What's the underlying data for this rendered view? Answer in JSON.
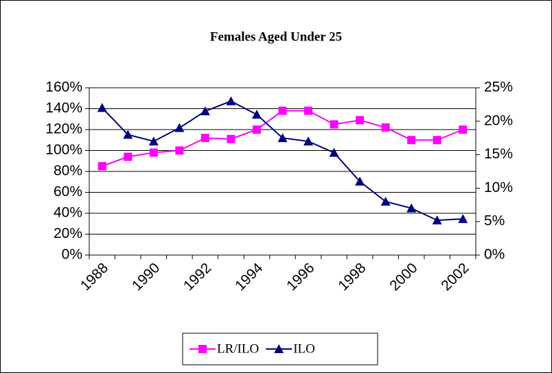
{
  "chart_data": {
    "type": "line",
    "title": "Females Aged Under 25",
    "categories": [
      "1988",
      null,
      "1990",
      null,
      "1992",
      null,
      "1994",
      null,
      "1996",
      null,
      "1998",
      null,
      "2000",
      null,
      "2002"
    ],
    "series": [
      {
        "name": "LR/ILO",
        "color": "#ff00ff",
        "marker": "square",
        "values": [
          85,
          94,
          98,
          100,
          112,
          111,
          120,
          138,
          138,
          125,
          129,
          122,
          110,
          110,
          120
        ]
      },
      {
        "name": "ILO",
        "color": "#000080",
        "marker": "triangle",
        "axis": "y2",
        "values": [
          22,
          18,
          17,
          19,
          21.5,
          23,
          21,
          17.5,
          17,
          15.3,
          11,
          8,
          7,
          5.2,
          5.4
        ]
      }
    ],
    "ylim": [
      0,
      160
    ],
    "yticks": [
      {
        "value": 0,
        "label": "0%"
      },
      {
        "value": 20,
        "label": "20%"
      },
      {
        "value": 40,
        "label": "40%"
      },
      {
        "value": 60,
        "label": "60%"
      },
      {
        "value": 80,
        "label": "80%"
      },
      {
        "value": 100,
        "label": "100%"
      },
      {
        "value": 120,
        "label": "120%"
      },
      {
        "value": 140,
        "label": "140%"
      },
      {
        "value": 160,
        "label": "160%"
      }
    ],
    "y2lim": [
      0,
      25
    ],
    "y2ticks": [
      {
        "value": 0,
        "label": "0%"
      },
      {
        "value": 5,
        "label": "5%"
      },
      {
        "value": 10,
        "label": "10%"
      },
      {
        "value": 15,
        "label": "15%"
      },
      {
        "value": 20,
        "label": "20%"
      },
      {
        "value": 25,
        "label": "25%"
      }
    ],
    "grid": true,
    "legend": "bottom"
  }
}
